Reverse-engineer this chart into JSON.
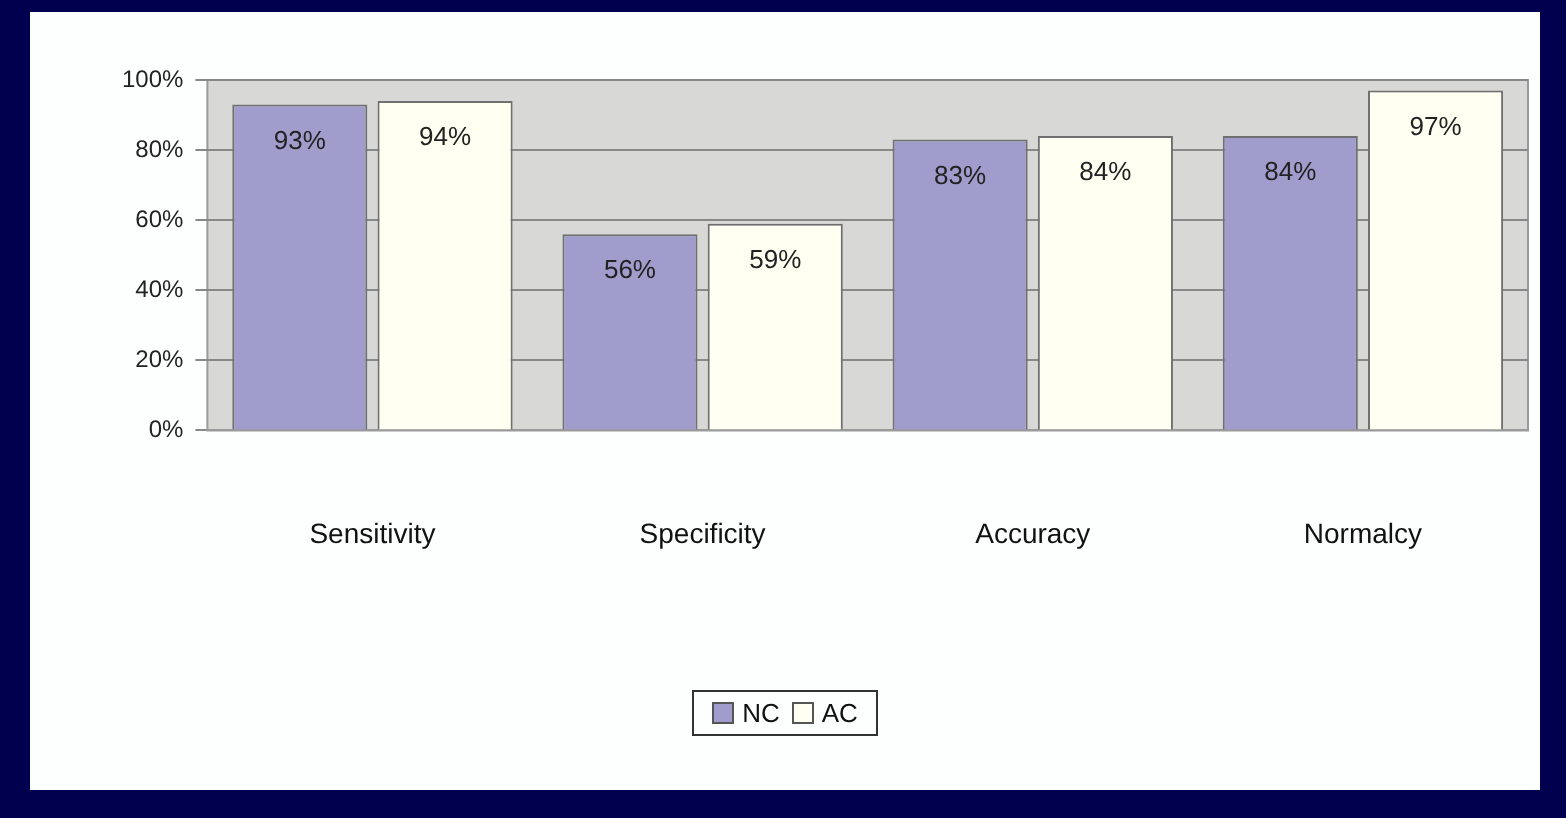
{
  "chart_data": {
    "type": "bar",
    "categories": [
      "Sensitivity",
      "Specificity",
      "Accuracy",
      "Normalcy"
    ],
    "series": [
      {
        "name": "NC",
        "color": "#a09ccc",
        "values": [
          93,
          56,
          83,
          84
        ],
        "value_labels": [
          "93%",
          "56%",
          "83%",
          "84%"
        ]
      },
      {
        "name": "AC",
        "color": "#fffff2",
        "values": [
          94,
          59,
          84,
          97
        ],
        "value_labels": [
          "94%",
          "59%",
          "84%",
          "97%"
        ]
      }
    ],
    "ylim": [
      0,
      100
    ],
    "yticks": [
      {
        "value": 0,
        "label": "0%"
      },
      {
        "value": 20,
        "label": "20%"
      },
      {
        "value": 40,
        "label": "40%"
      },
      {
        "value": 60,
        "label": "60%"
      },
      {
        "value": 80,
        "label": "80%"
      },
      {
        "value": 100,
        "label": "100%"
      }
    ],
    "grid": "y",
    "legend": "bottom"
  }
}
